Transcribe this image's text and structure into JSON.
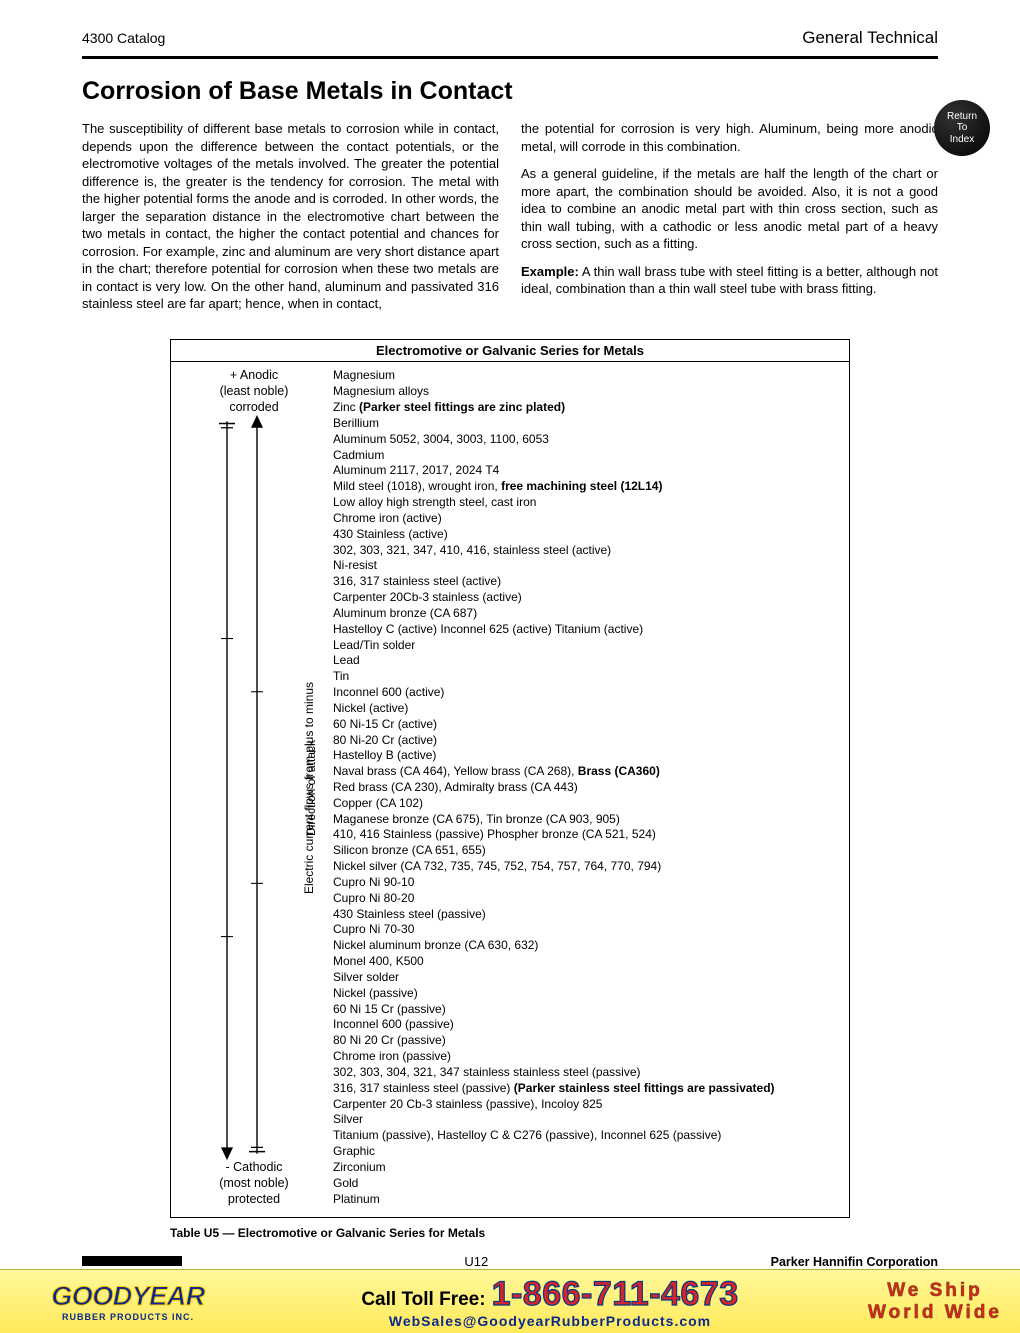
{
  "header": {
    "left": "4300 Catalog",
    "right": "General Technical"
  },
  "return_button": {
    "l1": "Return",
    "l2": "To",
    "l3": "Index"
  },
  "title": "Corrosion of Base Metals in Contact",
  "intro_para": "The susceptibility of different base metals to corrosion while in contact, depends upon the difference between the contact potentials, or the electromotive voltages of the metals involved. The greater the potential difference is, the greater is the tendency for corrosion. The metal with the higher potential forms the anode and is corroded. In other words, the larger the separation distance in the electromotive chart between the two metals in contact, the higher the contact potential and chances for corrosion. For example, zinc and aluminum are very short distance apart in the chart; therefore potential for corrosion when these two metals are in contact is very low. On the other hand, aluminum and passivated 316 stainless steel are far apart; hence, when in contact,",
  "para2": "the potential for corrosion is very high. Aluminum, being more anodic metal, will corrode in this combination.",
  "para3": "As a general guideline, if the metals are half the length of the chart or more apart, the combination should be avoided. Also, it is not a good idea to combine an anodic metal part with thin cross section, such as thin wall tubing, with a cathodic or less anodic metal part of a heavy cross section, such as a fitting.",
  "example_label": "Example:",
  "example_text": " A thin wall brass tube with steel fitting is a better, although not ideal, combination than a thin wall steel tube with brass fitting.",
  "table": {
    "title": "Electromotive or Galvanic Series for Metals",
    "anodic": {
      "l1": "+ Anodic",
      "l2": "(least noble)",
      "l3": "corroded"
    },
    "cathodic": {
      "l1": "- Cathodic",
      "l2": "(most noble)",
      "l3": "protected"
    },
    "rot1": "Electric current flows from plus to minus",
    "rot2": "Direction of attack",
    "metals": [
      {
        "t": "Magnesium"
      },
      {
        "t": "Magnesium alloys"
      },
      {
        "pre": "Zinc ",
        "b": "(Parker steel fittings are zinc plated)"
      },
      {
        "t": "Berillium"
      },
      {
        "t": "Aluminum 5052, 3004, 3003, 1100, 6053"
      },
      {
        "t": "Cadmium"
      },
      {
        "t": "Aluminum 2117, 2017, 2024 T4"
      },
      {
        "pre": "Mild steel (1018), wrought iron, ",
        "b": "free machining steel (12L14)"
      },
      {
        "t": "Low alloy high strength steel, cast iron"
      },
      {
        "t": "Chrome iron (active)"
      },
      {
        "t": "430 Stainless (active)"
      },
      {
        "t": "302, 303, 321, 347, 410, 416, stainless steel (active)"
      },
      {
        "t": "Ni-resist"
      },
      {
        "t": "316, 317 stainless steel (active)"
      },
      {
        "t": "Carpenter 20Cb-3 stainless (active)"
      },
      {
        "t": "Aluminum bronze (CA 687)"
      },
      {
        "t": "Hastelloy C (active) Inconnel 625 (active) Titanium (active)"
      },
      {
        "t": "Lead/Tin solder"
      },
      {
        "t": "Lead"
      },
      {
        "t": "Tin"
      },
      {
        "t": "Inconnel 600 (active)"
      },
      {
        "t": "Nickel (active)"
      },
      {
        "t": "60 Ni-15 Cr (active)"
      },
      {
        "t": "80 Ni-20 Cr (active)"
      },
      {
        "t": "Hastelloy B (active)"
      },
      {
        "pre": "Naval brass (CA 464), Yellow brass (CA 268), ",
        "b": "Brass (CA360)"
      },
      {
        "t": "Red brass (CA 230), Admiralty brass (CA 443)"
      },
      {
        "t": "Copper (CA 102)"
      },
      {
        "t": "Maganese bronze (CA 675), Tin bronze (CA 903, 905)"
      },
      {
        "t": "410, 416 Stainless (passive) Phospher bronze (CA 521, 524)"
      },
      {
        "t": "Silicon bronze (CA 651, 655)"
      },
      {
        "t": "Nickel silver (CA 732, 735, 745, 752, 754, 757, 764, 770, 794)"
      },
      {
        "t": "Cupro Ni 90-10"
      },
      {
        "t": "Cupro Ni 80-20"
      },
      {
        "t": "430 Stainless steel (passive)"
      },
      {
        "t": "Cupro Ni 70-30"
      },
      {
        "t": "Nickel aluminum bronze (CA 630, 632)"
      },
      {
        "t": "Monel 400, K500"
      },
      {
        "t": "Silver solder"
      },
      {
        "t": "Nickel (passive)"
      },
      {
        "t": "60 Ni 15 Cr (passive)"
      },
      {
        "t": "Inconnel 600 (passive)"
      },
      {
        "t": "80 Ni 20 Cr (passive)"
      },
      {
        "t": "Chrome iron (passive)"
      },
      {
        "t": "302, 303, 304, 321, 347 stainless stainless steel (passive)"
      },
      {
        "pre": "316, 317 stainless steel (passive) ",
        "b": "(Parker stainless steel fittings are passivated)"
      },
      {
        "t": "Carpenter 20 Cb-3 stainless (passive), Incoloy 825"
      },
      {
        "t": "Silver"
      },
      {
        "t": "Titanium (passive), Hastelloy C & C276 (passive), Inconnel 625 (passive)"
      },
      {
        "t": "Graphic"
      },
      {
        "t": "Zirconium"
      },
      {
        "t": "Gold"
      },
      {
        "t": "Platinum"
      }
    ],
    "caption": "Table U5 — Electromotive or Galvanic Series for Metals"
  },
  "footer": {
    "page": "U12",
    "company": "Parker Hannifin Corporation"
  },
  "banner": {
    "brand": "GOODYEAR",
    "brand_sub": "RUBBER PRODUCTS INC.",
    "call": "Call Toll Free:",
    "phone": "1-866-711-4673",
    "email": "WebSales@GoodyearRubberProducts.com",
    "ship1": "We Ship",
    "ship2": "World Wide"
  }
}
